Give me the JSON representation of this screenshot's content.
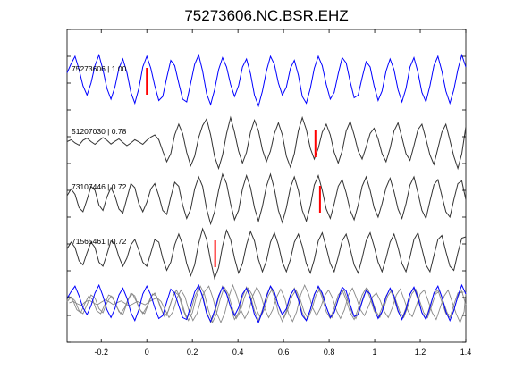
{
  "chart_data": {
    "type": "line",
    "title": "75273606.NC.BSR.EHZ",
    "xlabel": "",
    "ylabel": "",
    "xlim": [
      -0.35,
      1.4
    ],
    "x_ticks": [
      "-0.2",
      "0",
      "0.2",
      "0.4",
      "0.6",
      "0.8",
      "1",
      "1.2",
      "1.4"
    ],
    "x_tick_values": [
      -0.2,
      0,
      0.2,
      0.4,
      0.6,
      0.8,
      1.0,
      1.2,
      1.4
    ],
    "grid": false,
    "colors": {
      "reference": "#0000ff",
      "trace": "#333333",
      "stack": "#888888",
      "pick": "#ff0000",
      "axis": "#000000"
    },
    "series": [
      {
        "label": "75273606 | 1.00",
        "color": "#0000ff",
        "pick_time": 0.0,
        "y": [
          0.28,
          0.62,
          0.9,
          0.41,
          -0.2,
          -0.55,
          -0.1,
          0.55,
          0.95,
          0.4,
          -0.3,
          -0.7,
          -0.25,
          0.45,
          0.8,
          0.3,
          -0.45,
          -0.85,
          -0.3,
          0.5,
          0.9,
          0.45,
          -0.2,
          -0.75,
          -0.6,
          0.1,
          0.75,
          0.55,
          -0.1,
          -0.7,
          -0.8,
          -0.1,
          0.6,
          0.95,
          0.35,
          -0.5,
          -0.9,
          -0.35,
          0.4,
          0.85,
          0.5,
          -0.15,
          -0.6,
          -0.2,
          0.5,
          0.8,
          0.25,
          -0.55,
          -0.95,
          -0.4,
          0.35,
          0.9,
          0.6,
          -0.1,
          -0.55,
          -0.25,
          0.45,
          0.75,
          0.2,
          -0.6,
          -0.85,
          -0.3,
          0.45,
          0.9,
          0.55,
          -0.15,
          -0.7,
          -0.45,
          0.25,
          0.85,
          0.65,
          -0.05,
          -0.65,
          -0.55,
          0.1,
          0.7,
          0.5,
          -0.2,
          -0.75,
          -0.4,
          0.35,
          0.8,
          0.4,
          -0.35,
          -0.8,
          -0.3,
          0.5,
          0.85,
          0.3,
          -0.45,
          -0.8,
          -0.2,
          0.55,
          0.9,
          0.35,
          -0.4,
          -0.85,
          -0.35,
          0.4,
          0.95,
          0.5
        ]
      },
      {
        "label": "51207030 | 0.78",
        "color": "#333333",
        "pick_time": 0.74,
        "y": [
          0.05,
          0.12,
          0.0,
          -0.08,
          0.1,
          0.18,
          0.05,
          -0.05,
          0.08,
          0.2,
          0.1,
          -0.04,
          0.06,
          0.15,
          0.02,
          -0.1,
          0.0,
          0.12,
          0.04,
          -0.05,
          0.1,
          0.22,
          0.3,
          0.12,
          -0.3,
          -0.7,
          -0.4,
          0.3,
          0.7,
          0.35,
          -0.35,
          -0.85,
          -0.5,
          0.2,
          0.65,
          0.9,
          0.3,
          -0.5,
          -0.95,
          -0.45,
          0.35,
          0.95,
          0.4,
          -0.3,
          -0.75,
          -0.35,
          0.4,
          0.85,
          0.45,
          -0.25,
          -0.7,
          -0.3,
          0.35,
          0.75,
          0.3,
          -0.5,
          -0.9,
          -0.4,
          0.45,
          0.95,
          0.5,
          -0.2,
          -0.6,
          -0.2,
          0.4,
          0.7,
          0.3,
          -0.35,
          -0.75,
          -0.3,
          0.45,
          0.8,
          0.3,
          -0.3,
          -0.6,
          -0.15,
          0.35,
          0.55,
          0.15,
          -0.4,
          -0.7,
          -0.2,
          0.45,
          0.75,
          0.2,
          -0.4,
          -0.65,
          -0.1,
          0.5,
          0.7,
          0.15,
          -0.45,
          -0.8,
          -0.2,
          0.4,
          0.7,
          0.1,
          -0.5,
          -0.95,
          -0.4,
          0.6
        ]
      },
      {
        "label": "73107446 | 0.72",
        "color": "#333333",
        "pick_time": 0.76,
        "y": [
          0.1,
          0.35,
          0.15,
          -0.35,
          -0.5,
          -0.05,
          0.45,
          0.3,
          -0.25,
          -0.45,
          0.05,
          0.4,
          0.1,
          -0.4,
          -0.55,
          0.0,
          0.55,
          0.4,
          -0.2,
          -0.5,
          -0.15,
          0.35,
          0.55,
          0.1,
          -0.45,
          -0.6,
          0.05,
          0.6,
          0.45,
          -0.25,
          -0.75,
          -0.4,
          0.35,
          0.8,
          0.45,
          -0.4,
          -0.95,
          -0.5,
          0.3,
          0.9,
          0.55,
          -0.2,
          -0.8,
          -0.45,
          0.35,
          0.85,
          0.4,
          -0.35,
          -0.85,
          -0.3,
          0.45,
          0.9,
          0.35,
          -0.45,
          -0.9,
          -0.35,
          0.4,
          0.8,
          0.3,
          -0.45,
          -0.85,
          -0.3,
          0.5,
          0.85,
          0.3,
          -0.4,
          -0.75,
          -0.2,
          0.45,
          0.7,
          0.2,
          -0.45,
          -0.8,
          -0.25,
          0.45,
          0.8,
          0.3,
          -0.35,
          -0.7,
          -0.2,
          0.4,
          0.75,
          0.25,
          -0.4,
          -0.75,
          -0.2,
          0.5,
          0.8,
          0.2,
          -0.45,
          -0.75,
          -0.1,
          0.5,
          0.7,
          0.1,
          -0.5,
          -0.7,
          -0.05,
          0.55,
          0.65,
          -0.05
        ]
      },
      {
        "label": "71565461 | 0.72",
        "color": "#333333",
        "pick_time": 0.3,
        "y": [
          0.15,
          0.4,
          0.2,
          -0.3,
          -0.45,
          0.0,
          0.4,
          0.2,
          -0.35,
          -0.5,
          -0.05,
          0.45,
          0.35,
          -0.15,
          -0.5,
          -0.2,
          0.3,
          0.5,
          0.1,
          -0.35,
          -0.5,
          0.0,
          0.5,
          0.4,
          -0.2,
          -0.65,
          -0.35,
          0.3,
          0.7,
          0.3,
          -0.4,
          -0.85,
          -0.45,
          0.35,
          0.9,
          0.5,
          -0.3,
          -0.95,
          -0.55,
          0.25,
          0.85,
          0.5,
          -0.2,
          -0.75,
          -0.4,
          0.3,
          0.8,
          0.45,
          -0.25,
          -0.7,
          -0.3,
          0.4,
          0.75,
          0.3,
          -0.35,
          -0.7,
          -0.25,
          0.4,
          0.7,
          0.25,
          -0.4,
          -0.75,
          -0.25,
          0.45,
          0.75,
          0.2,
          -0.4,
          -0.7,
          -0.15,
          0.45,
          0.7,
          0.15,
          -0.45,
          -0.75,
          -0.2,
          0.45,
          0.75,
          0.25,
          -0.35,
          -0.7,
          -0.2,
          0.4,
          0.7,
          0.2,
          -0.4,
          -0.7,
          -0.15,
          0.5,
          0.75,
          0.15,
          -0.45,
          -0.7,
          -0.1,
          0.5,
          0.65,
          0.05,
          -0.5,
          -0.65,
          0.0,
          0.55,
          0.6
        ]
      }
    ]
  }
}
